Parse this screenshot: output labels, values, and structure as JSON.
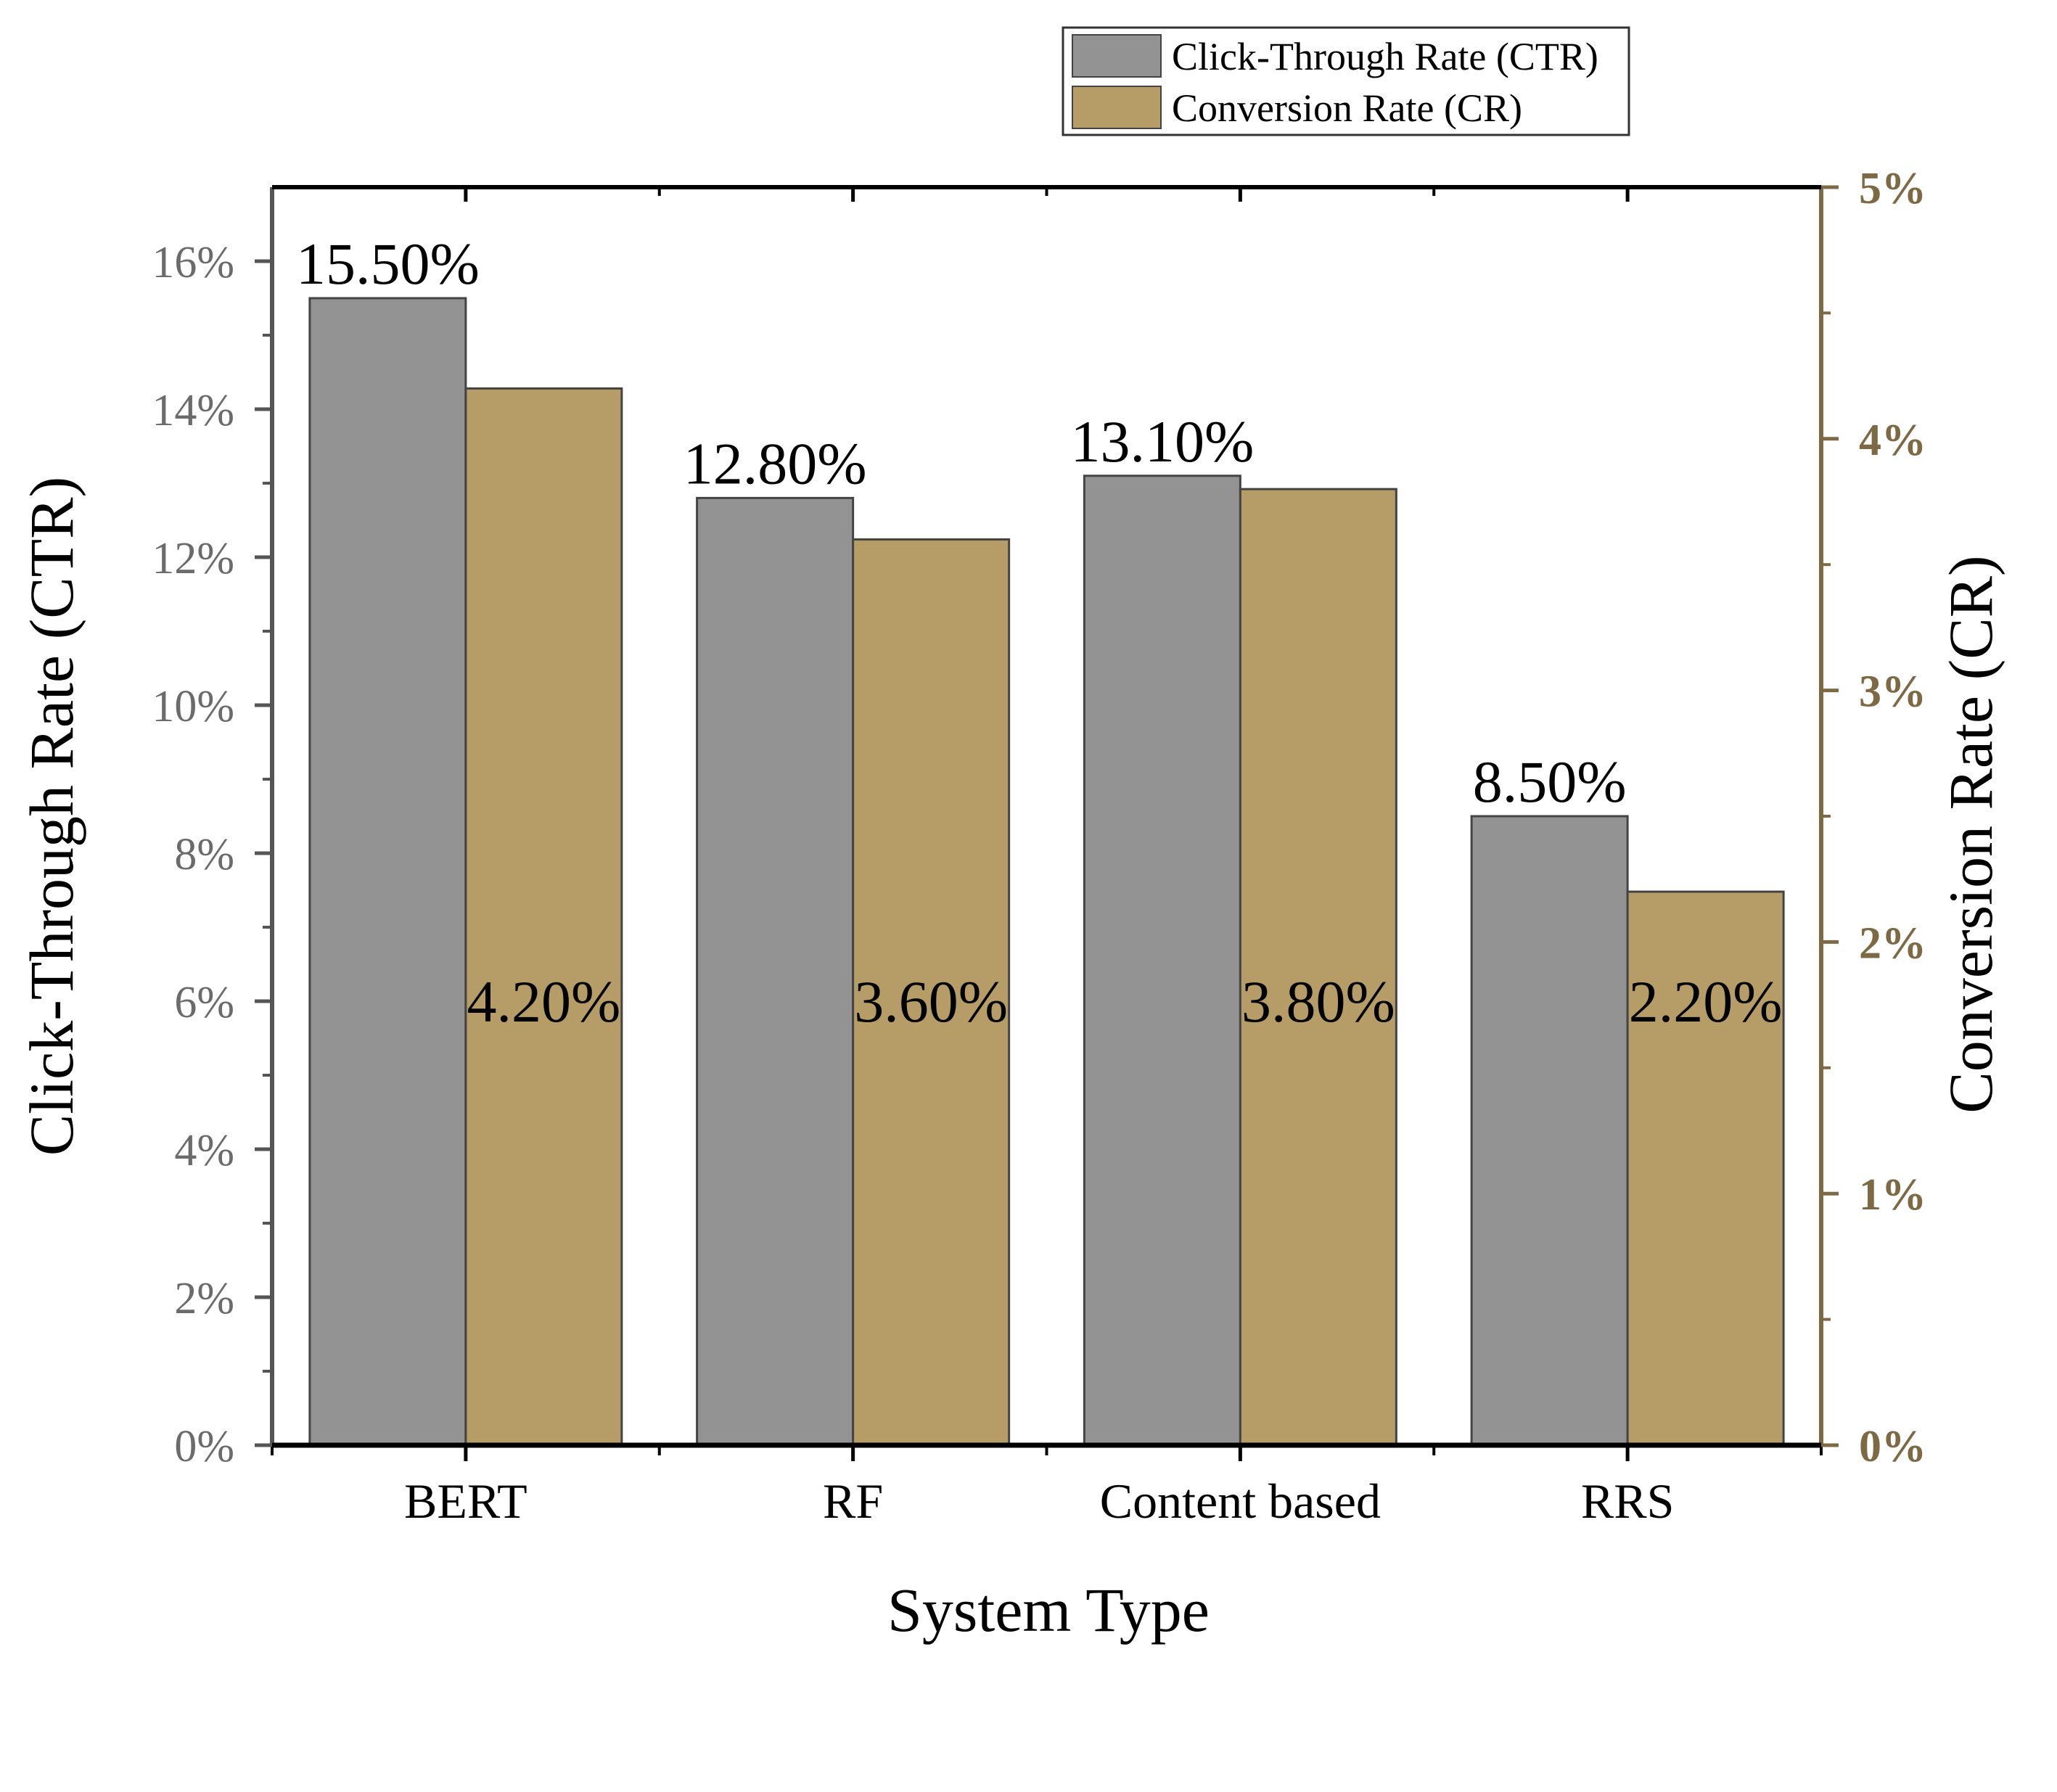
{
  "chart_data": {
    "type": "bar",
    "categories": [
      "BERT",
      "RF",
      "Content based",
      "RRS"
    ],
    "series": [
      {
        "name": "Click-Through Rate (CTR)",
        "axis": "left",
        "values": [
          15.5,
          12.8,
          13.1,
          8.5
        ],
        "labels": [
          "15.50%",
          "12.80%",
          "13.10%",
          "8.50%"
        ],
        "color": "#939393"
      },
      {
        "name": "Conversion Rate (CR)",
        "axis": "right",
        "values": [
          4.2,
          3.6,
          3.8,
          2.2
        ],
        "labels": [
          "4.20%",
          "3.60%",
          "3.80%",
          "2.20%"
        ],
        "color": "#b69d68"
      }
    ],
    "xlabel": "System Type",
    "ylabel": "Click-Through Rate (CTR)",
    "y2label": "Conversion Rate (CR)",
    "ylim": [
      0,
      17
    ],
    "y2lim": [
      0,
      5
    ],
    "yticks": [
      0,
      2,
      4,
      6,
      8,
      10,
      12,
      14,
      16
    ],
    "ytick_labels": [
      "0%",
      "2%",
      "4%",
      "6%",
      "8%",
      "10%",
      "12%",
      "14%",
      "16%"
    ],
    "y2ticks": [
      0,
      1,
      2,
      3,
      4,
      5
    ],
    "y2tick_labels": [
      "0%",
      "1%",
      "2%",
      "3%",
      "4%",
      "5%"
    ],
    "right_axis_color": "#7d6a45",
    "legend": "top-right",
    "grid": false
  }
}
